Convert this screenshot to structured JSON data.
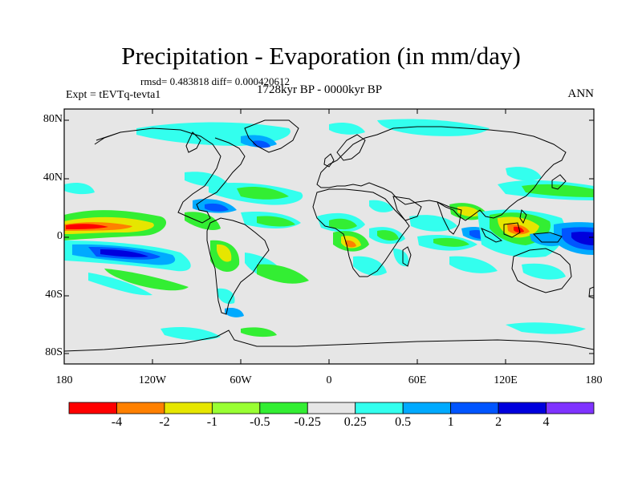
{
  "title": "Precipitation - Evaporation (in mm/day)",
  "stats": "rmsd= 0.483818 diff= 0.000420612",
  "experiment": "Expt = tEVTq-tevta1",
  "period": "1728kyr BP - 0000kyr BP",
  "season": "ANN",
  "axes": {
    "lat_ticks": [
      "80N",
      "40N",
      "0",
      "40S",
      "80S"
    ],
    "lon_ticks": [
      "180",
      "120W",
      "60W",
      "0",
      "60E",
      "120E",
      "180"
    ]
  },
  "colorbar": {
    "colors": [
      "#ff0000",
      "#ff8000",
      "#e6e600",
      "#99ff33",
      "#33ee33",
      "#e6e6e6",
      "#33ffee",
      "#00aaff",
      "#0055ff",
      "#0000dd",
      "#7f33ff"
    ],
    "labels": [
      "-4",
      "-2",
      "-1",
      "-0.5",
      "-0.25",
      "0.25",
      "0.5",
      "1",
      "2",
      "4"
    ]
  },
  "colors": {
    "background": "#e6e6e6",
    "coast": "#000000",
    "red": "#ff0000",
    "orange": "#ff8000",
    "yellow": "#e6e600",
    "lightgreen": "#99ff33",
    "green": "#33ee33",
    "cyan": "#33ffee",
    "sky": "#00aaff",
    "blue": "#0055ff",
    "navy": "#0000dd"
  }
}
